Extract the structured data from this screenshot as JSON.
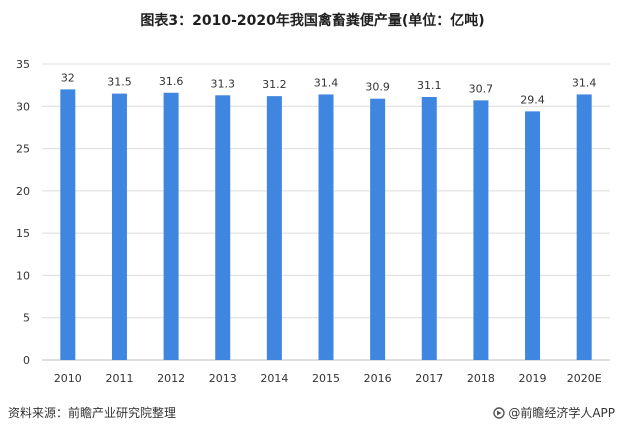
{
  "chart_data": {
    "type": "bar",
    "title": "图表3：2010-2020年我国禽畜粪便产量(单位：亿吨)",
    "categories": [
      "2010",
      "2011",
      "2012",
      "2013",
      "2014",
      "2015",
      "2016",
      "2017",
      "2018",
      "2019",
      "2020E"
    ],
    "values": [
      32,
      31.5,
      31.6,
      31.3,
      31.2,
      31.4,
      30.9,
      31.1,
      30.7,
      29.4,
      31.4
    ],
    "data_labels": [
      "32",
      "31.5",
      "31.6",
      "31.3",
      "31.2",
      "31.4",
      "30.9",
      "31.1",
      "30.7",
      "29.4",
      "31.4"
    ],
    "yticks": [
      "0",
      "5",
      "10",
      "15",
      "20",
      "25",
      "30",
      "35"
    ],
    "ylim": [
      0,
      35
    ],
    "xlabel": "",
    "ylabel": "",
    "grid": true,
    "legend": "none",
    "bar_color": "#3f86e0"
  },
  "footer": {
    "source": "资料来源：前瞻产业研究院整理",
    "brand": "@前瞻经济学人APP"
  }
}
